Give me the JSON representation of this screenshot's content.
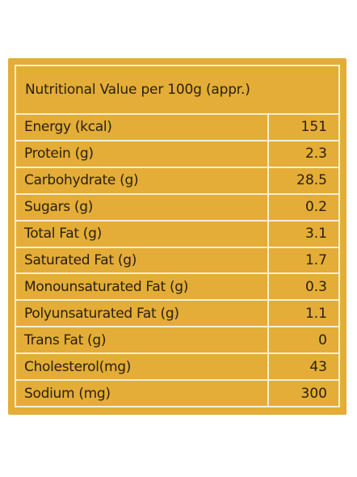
{
  "label": {
    "header": "Nutritional Value per 100g (appr.)",
    "rows": [
      {
        "name": "Energy (kcal)",
        "value": "151"
      },
      {
        "name": "Protein (g)",
        "value": "2.3"
      },
      {
        "name": "Carbohydrate (g)",
        "value": "28.5"
      },
      {
        "name": "Sugars (g)",
        "value": "0.2"
      },
      {
        "name": "Total Fat (g)",
        "value": "3.1"
      },
      {
        "name": "Saturated Fat (g)",
        "value": "1.7"
      },
      {
        "name": "Monounsaturated Fat (g)",
        "value": "0.3"
      },
      {
        "name": "Polyunsaturated Fat (g)",
        "value": "1.1"
      },
      {
        "name": "Trans Fat (g)",
        "value": "0"
      },
      {
        "name": "Cholesterol(mg)",
        "value": "43"
      },
      {
        "name": "Sodium (mg)",
        "value": "300"
      }
    ]
  },
  "colors": {
    "panel": "#e3ad37",
    "lines": "#f7eed4",
    "text": "#2a2014"
  }
}
